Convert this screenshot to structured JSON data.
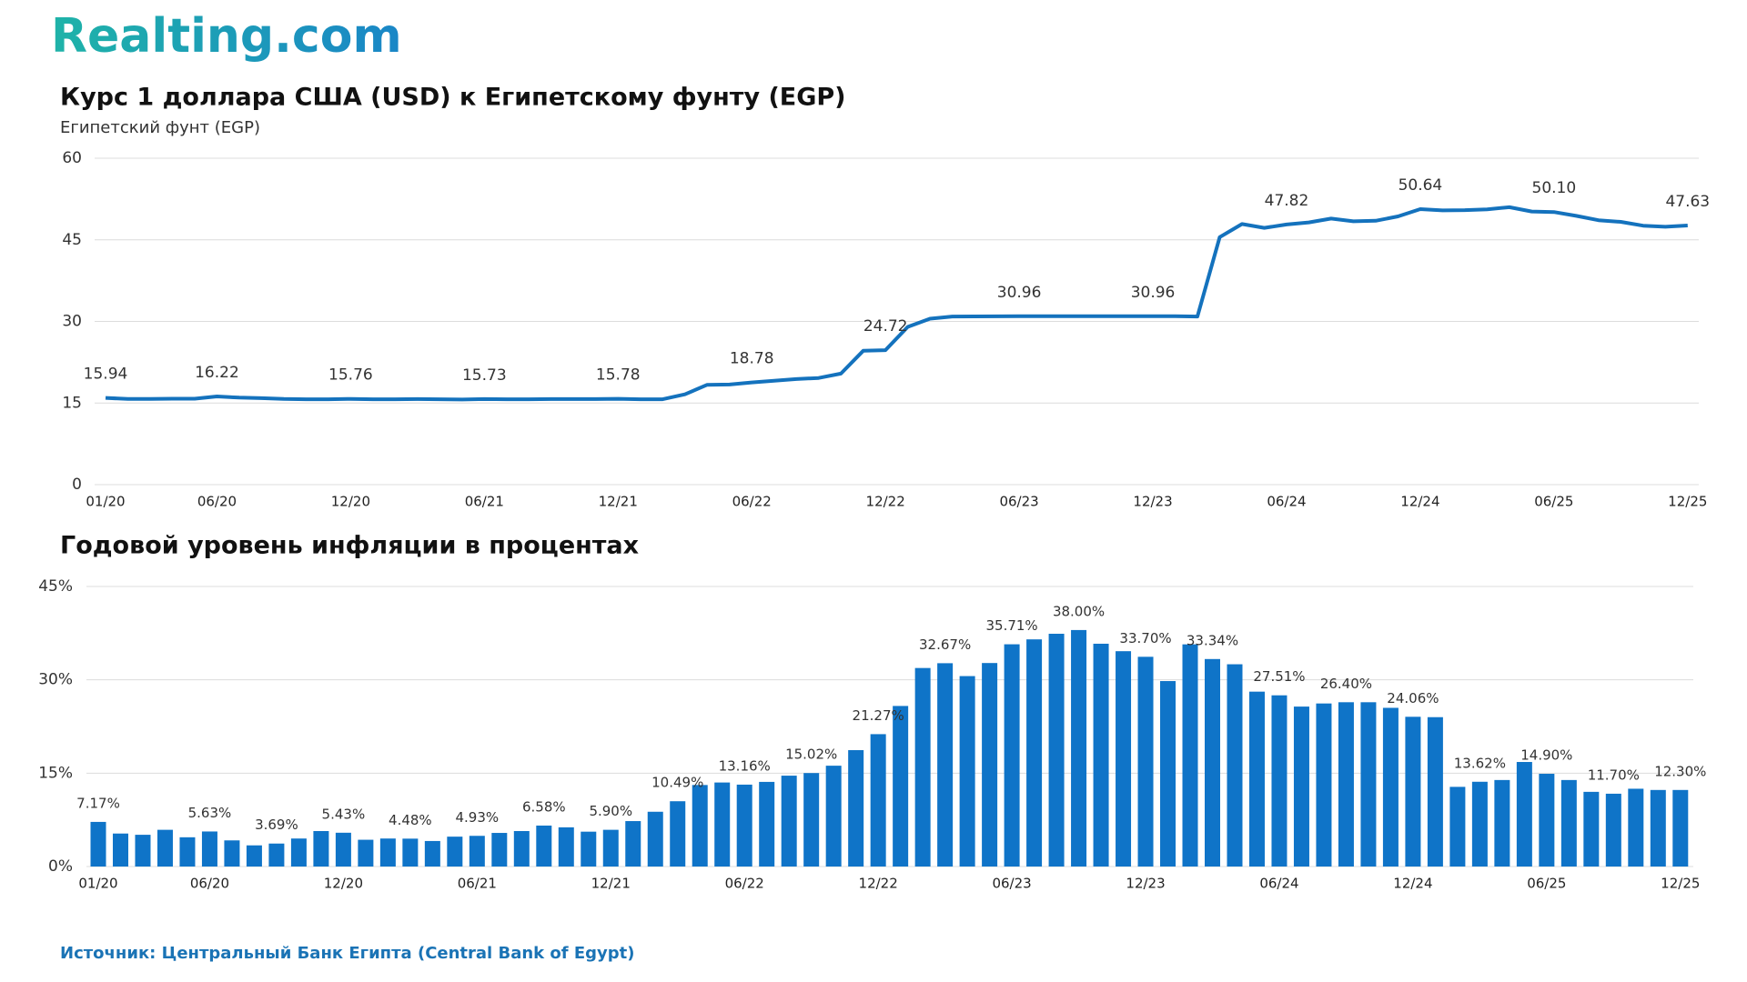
{
  "logo": "Realting.com",
  "source": "Источник: Центральный Банк Египта (Central Bank of Egypt)",
  "chart_data": [
    {
      "type": "line",
      "title": "Курс 1 доллара США (USD) к Египетскому фунту (EGP)",
      "y_label": "Египетский фунт (EGP)",
      "color": "#1472bd",
      "categories": [
        "01/20",
        null,
        null,
        null,
        null,
        "06/20",
        null,
        null,
        null,
        null,
        null,
        "12/20",
        null,
        null,
        null,
        null,
        null,
        "06/21",
        null,
        null,
        null,
        null,
        null,
        "12/21",
        null,
        null,
        null,
        null,
        null,
        "06/22",
        null,
        null,
        null,
        null,
        null,
        "12/22",
        null,
        null,
        null,
        null,
        null,
        "06/23",
        null,
        null,
        null,
        null,
        null,
        "12/23",
        null,
        null,
        null,
        null,
        null,
        "06/24",
        null,
        null,
        null,
        null,
        null,
        "12/24",
        null,
        null,
        null,
        null,
        null,
        "06/25",
        null,
        null,
        null,
        null,
        null,
        "12/25"
      ],
      "values": [
        15.94,
        15.75,
        15.75,
        15.8,
        15.8,
        16.22,
        16.0,
        15.9,
        15.75,
        15.7,
        15.7,
        15.76,
        15.7,
        15.7,
        15.72,
        15.7,
        15.65,
        15.73,
        15.7,
        15.7,
        15.72,
        15.72,
        15.72,
        15.78,
        15.7,
        15.7,
        16.6,
        18.35,
        18.4,
        18.78,
        19.1,
        19.4,
        19.6,
        20.4,
        24.6,
        24.72,
        29.0,
        30.5,
        30.9,
        30.92,
        30.94,
        30.96,
        30.96,
        30.96,
        30.96,
        30.96,
        30.96,
        30.96,
        30.96,
        30.9,
        45.5,
        47.9,
        47.2,
        47.82,
        48.2,
        48.9,
        48.4,
        48.5,
        49.3,
        50.64,
        50.4,
        50.45,
        50.6,
        51.0,
        50.2,
        50.1,
        49.4,
        48.6,
        48.3,
        47.6,
        47.4,
        47.63
      ],
      "value_labels": [
        "15.94",
        null,
        null,
        null,
        null,
        "16.22",
        null,
        null,
        null,
        null,
        null,
        "15.76",
        null,
        null,
        null,
        null,
        null,
        "15.73",
        null,
        null,
        null,
        null,
        null,
        "15.78",
        null,
        null,
        null,
        null,
        null,
        "18.78",
        null,
        null,
        null,
        null,
        null,
        "24.72",
        null,
        null,
        null,
        null,
        null,
        "30.96",
        null,
        null,
        null,
        null,
        null,
        "30.96",
        null,
        null,
        null,
        null,
        null,
        "47.82",
        null,
        null,
        null,
        null,
        null,
        "50.64",
        null,
        null,
        null,
        null,
        null,
        "50.10",
        null,
        null,
        null,
        null,
        null,
        "47.63"
      ],
      "ylim": [
        0,
        60
      ],
      "yticks": [
        0,
        15,
        30,
        45,
        60
      ],
      "grid": true
    },
    {
      "type": "bar",
      "title": "Годовой уровень инфляции в процентах",
      "color": "#0f74c8",
      "categories": [
        "01/20",
        null,
        null,
        null,
        null,
        "06/20",
        null,
        null,
        null,
        null,
        null,
        "12/20",
        null,
        null,
        null,
        null,
        null,
        "06/21",
        null,
        null,
        null,
        null,
        null,
        "12/21",
        null,
        null,
        null,
        null,
        null,
        "06/22",
        null,
        null,
        null,
        null,
        null,
        "12/22",
        null,
        null,
        null,
        null,
        null,
        "06/23",
        null,
        null,
        null,
        null,
        null,
        "12/23",
        null,
        null,
        null,
        null,
        null,
        "06/24",
        null,
        null,
        null,
        null,
        null,
        "12/24",
        null,
        null,
        null,
        null,
        null,
        "06/25",
        null,
        null,
        null,
        null,
        null,
        "12/25"
      ],
      "values": [
        7.17,
        5.3,
        5.1,
        5.9,
        4.7,
        5.63,
        4.2,
        3.4,
        3.69,
        4.5,
        5.7,
        5.43,
        4.3,
        4.5,
        4.48,
        4.1,
        4.8,
        4.93,
        5.4,
        5.7,
        6.58,
        6.3,
        5.6,
        5.9,
        7.3,
        8.8,
        10.49,
        13.1,
        13.5,
        13.16,
        13.6,
        14.6,
        15.02,
        16.2,
        18.7,
        21.27,
        25.8,
        31.9,
        32.67,
        30.6,
        32.7,
        35.71,
        36.5,
        37.4,
        38.0,
        35.8,
        34.6,
        33.7,
        29.8,
        35.7,
        33.34,
        32.5,
        28.1,
        27.51,
        25.7,
        26.2,
        26.4,
        26.4,
        25.5,
        24.06,
        24.0,
        12.8,
        13.62,
        13.9,
        16.8,
        14.9,
        13.9,
        12.0,
        11.7,
        12.5,
        12.3,
        12.3
      ],
      "value_labels": [
        "7.17%",
        null,
        null,
        null,
        null,
        "5.63%",
        null,
        null,
        "3.69%",
        null,
        null,
        "5.43%",
        null,
        null,
        "4.48%",
        null,
        null,
        "4.93%",
        null,
        null,
        "6.58%",
        null,
        null,
        "5.90%",
        null,
        null,
        "10.49%",
        null,
        null,
        "13.16%",
        null,
        null,
        "15.02%",
        null,
        null,
        "21.27%",
        null,
        null,
        "32.67%",
        null,
        null,
        "35.71%",
        null,
        null,
        "38.00%",
        null,
        null,
        "33.70%",
        null,
        null,
        "33.34%",
        null,
        null,
        "27.51%",
        null,
        null,
        "26.40%",
        null,
        null,
        "24.06%",
        null,
        null,
        "13.62%",
        null,
        null,
        "14.90%",
        null,
        null,
        "11.70%",
        null,
        null,
        "12.30%"
      ],
      "ylim": [
        0,
        45
      ],
      "yticks": [
        {
          "value": 0,
          "label": "0%"
        },
        {
          "value": 15,
          "label": "15%"
        },
        {
          "value": 30,
          "label": "30%"
        },
        {
          "value": 45,
          "label": "45%"
        }
      ],
      "grid": true
    }
  ]
}
